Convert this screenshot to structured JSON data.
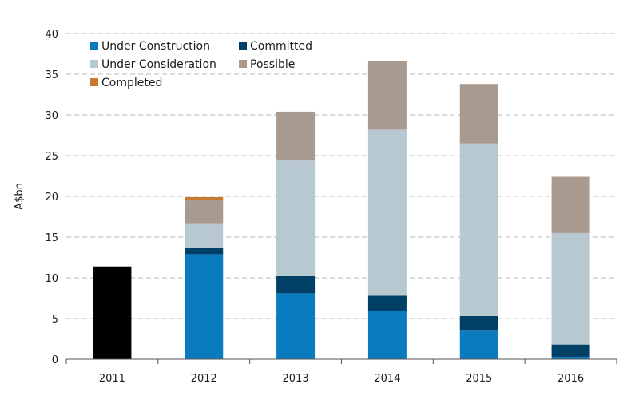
{
  "chart_data": {
    "type": "bar",
    "stacked": true,
    "categories": [
      "2011",
      "2012",
      "2013",
      "2014",
      "2015",
      "2016"
    ],
    "ylabel": "A$bn",
    "ylim": [
      0,
      40
    ],
    "yticks": [
      0,
      5,
      10,
      15,
      20,
      25,
      30,
      35,
      40
    ],
    "grid": true,
    "legend_position": "top-left",
    "series": [
      {
        "key": "total2011",
        "name": "",
        "color": "#000000",
        "values": [
          11.4,
          0,
          0,
          0,
          0,
          0
        ]
      },
      {
        "key": "under_construction",
        "name": "Under Construction",
        "color": "#0a7bbf",
        "values": [
          0,
          12.9,
          8.1,
          5.9,
          3.6,
          0.3
        ]
      },
      {
        "key": "committed",
        "name": "Committed",
        "color": "#003f66",
        "values": [
          0,
          0.8,
          2.1,
          1.9,
          1.7,
          1.5
        ]
      },
      {
        "key": "under_consideration",
        "name": "Under Consideration",
        "color": "#b8c8d0",
        "values": [
          0,
          3.0,
          14.2,
          20.4,
          21.2,
          13.7
        ]
      },
      {
        "key": "possible",
        "name": "Possible",
        "color": "#a89a8e",
        "values": [
          0,
          2.8,
          6.0,
          8.4,
          7.3,
          6.9
        ]
      },
      {
        "key": "completed",
        "name": "Completed",
        "color": "#c8792e",
        "values": [
          0,
          0.4,
          0,
          0,
          0,
          0
        ]
      }
    ],
    "legend_order": [
      "under_construction",
      "committed",
      "under_consideration",
      "possible",
      "completed"
    ]
  }
}
